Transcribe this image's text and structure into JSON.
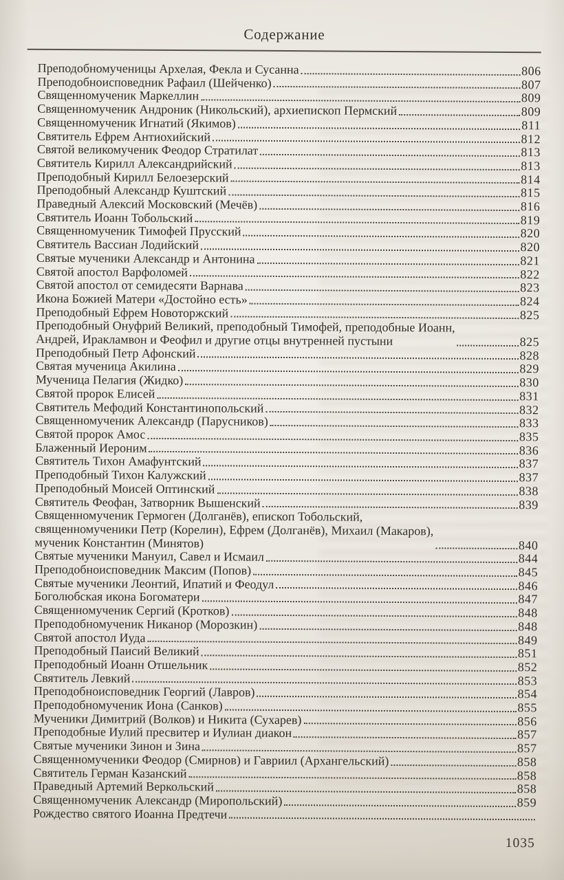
{
  "page": {
    "title": "Содержание",
    "footer_page_number": "1035"
  },
  "toc": {
    "entries": [
      {
        "title": "Преподобномученицы Архелая, Фекла и Сусанна",
        "page": "806"
      },
      {
        "title": "Преподобноисповедник Рафаил (Шейченко)",
        "page": "807"
      },
      {
        "title": "Священномученик Маркеллин",
        "page": "809"
      },
      {
        "title": "Священномученик Андроник (Никольский), архиепископ Пермский",
        "page": "809"
      },
      {
        "title": "Священномученик Игнатий (Якимов)",
        "page": "811"
      },
      {
        "title": "Святитель Ефрем Антиохийский",
        "page": "812"
      },
      {
        "title": "Святой великомученик Феодор Стратилат",
        "page": "813"
      },
      {
        "title": "Святитель Кирилл Александрийский",
        "page": "813"
      },
      {
        "title": "Преподобный Кирилл Белоезерский",
        "page": "814"
      },
      {
        "title": "Преподобный Александр Куштский",
        "page": "815"
      },
      {
        "title": "Праведный Алексий Московский (Мечёв)",
        "page": "816"
      },
      {
        "title": "Святитель Иоанн Тобольский",
        "page": "819"
      },
      {
        "title": "Священномученик Тимофей Прусский",
        "page": "820"
      },
      {
        "title": "Святитель Вассиан Лодийский",
        "page": "820"
      },
      {
        "title": "Святые мученики Александр и Антонина",
        "page": "821"
      },
      {
        "title": "Святой апостол Варфоломей",
        "page": "822"
      },
      {
        "title": "Святой апостол от семидесяти Варнава",
        "page": "823"
      },
      {
        "title": "Икона Божией Матери «Достойно есть»",
        "page": "824"
      },
      {
        "title": "Преподобный Ефрем Новоторжский",
        "page": "825"
      },
      {
        "title": "Преподобный Онуфрий Великий, преподобный Тимофей, преподобные Иоанн,\nАндрей, Иракламвон и Феофил и другие отцы внутренней пустыни",
        "page": "825"
      },
      {
        "title": "Преподобный Петр Афонский",
        "page": "828"
      },
      {
        "title": "Святая мученица Акилина",
        "page": "829"
      },
      {
        "title": "Мученица Пелагия (Жидко)",
        "page": "830"
      },
      {
        "title": "Святой пророк Елисей",
        "page": "831"
      },
      {
        "title": "Святитель Мефодий Константинопольский",
        "page": "832"
      },
      {
        "title": "Священномученик Александр (Парусников)",
        "page": "833"
      },
      {
        "title": "Святой пророк Амос",
        "page": "835"
      },
      {
        "title": "Блаженный Иероним",
        "page": "836"
      },
      {
        "title": "Святитель Тихон Амафунтский",
        "page": "837"
      },
      {
        "title": "Преподобный Тихон Калужский",
        "page": "837"
      },
      {
        "title": "Преподобный Моисей Оптинский",
        "page": "838"
      },
      {
        "title": "Святитель Феофан, Затворник Вышенский",
        "page": "839"
      },
      {
        "title": "Священномученик Гермоген (Долганёв), епископ Тобольский,\nсвященномученики Петр (Корелин), Ефрем (Долганёв), Михаил (Макаров),\nмученик Константин (Минятов)",
        "page": "840"
      },
      {
        "title": "Святые мученики Мануил, Савел и Исмаил",
        "page": "844"
      },
      {
        "title": "Преподобноисповедник Максим (Попов)",
        "page": "845"
      },
      {
        "title": "Святые мученики Леонтий, Ипатий и Феодул",
        "page": "846"
      },
      {
        "title": "Боголюбская икона Богоматери",
        "page": "847"
      },
      {
        "title": "Священномученик Сергий (Кротков)",
        "page": "848"
      },
      {
        "title": "Преподобномученик Никанор (Морозкин)",
        "page": "848"
      },
      {
        "title": "Святой апостол Иуда",
        "page": "849"
      },
      {
        "title": "Преподобный Паисий Великий",
        "page": "851"
      },
      {
        "title": "Преподобный Иоанн Отшельник",
        "page": "852"
      },
      {
        "title": "Святитель Левкий",
        "page": "853"
      },
      {
        "title": "Преподобноисповедник Георгий (Лавров)",
        "page": "854"
      },
      {
        "title": "Преподобномученик Иона (Санков)",
        "page": "855"
      },
      {
        "title": "Мученики Димитрий (Волков) и Никита (Сухарев)",
        "page": "856"
      },
      {
        "title": "Преподобные Иулий пресвитер и Иулиан диакон",
        "page": "857"
      },
      {
        "title": "Святые мученики Зинон и Зина",
        "page": "857"
      },
      {
        "title": "Священномученики Феодор (Смирнов) и Гавриил (Архангельский)",
        "page": "858"
      },
      {
        "title": "Святитель Герман Казанский",
        "page": "858"
      },
      {
        "title": "Праведный Артемий Веркольский",
        "page": "858"
      },
      {
        "title": "Священномученик Александр (Миропольский)",
        "page": "859"
      },
      {
        "title": "Рождество святого Иоанна Предтечи",
        "page": ""
      }
    ]
  }
}
